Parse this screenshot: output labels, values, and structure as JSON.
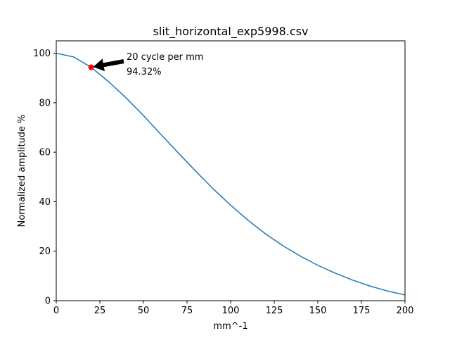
{
  "chart_data": {
    "type": "line",
    "title": "slit_horizontal_exp5998.csv",
    "xlabel": "mm^-1",
    "ylabel": "Normalized amplitude %",
    "xlim": [
      0,
      200
    ],
    "ylim": [
      0,
      105
    ],
    "xticks": [
      0,
      25,
      50,
      75,
      100,
      125,
      150,
      175,
      200
    ],
    "yticks": [
      0,
      20,
      40,
      60,
      80,
      100
    ],
    "grid": false,
    "series": [
      {
        "color": "#1f77b4",
        "x": [
          0,
          10,
          20,
          30,
          40,
          50,
          60,
          70,
          80,
          90,
          100,
          110,
          120,
          130,
          140,
          150,
          160,
          170,
          180,
          190,
          200
        ],
        "y": [
          100,
          98.5,
          94.32,
          88.5,
          82,
          74.8,
          67.2,
          59.7,
          52.3,
          45.2,
          38.6,
          32.5,
          27.0,
          22.2,
          18.0,
          14.3,
          11.1,
          8.3,
          5.9,
          3.9,
          2.3
        ]
      }
    ],
    "highlight": {
      "x": 20,
      "y": 94.32,
      "color": "#ff0000"
    },
    "annotation": {
      "line1": "20 cycle per mm",
      "line2": "94.32%"
    }
  }
}
